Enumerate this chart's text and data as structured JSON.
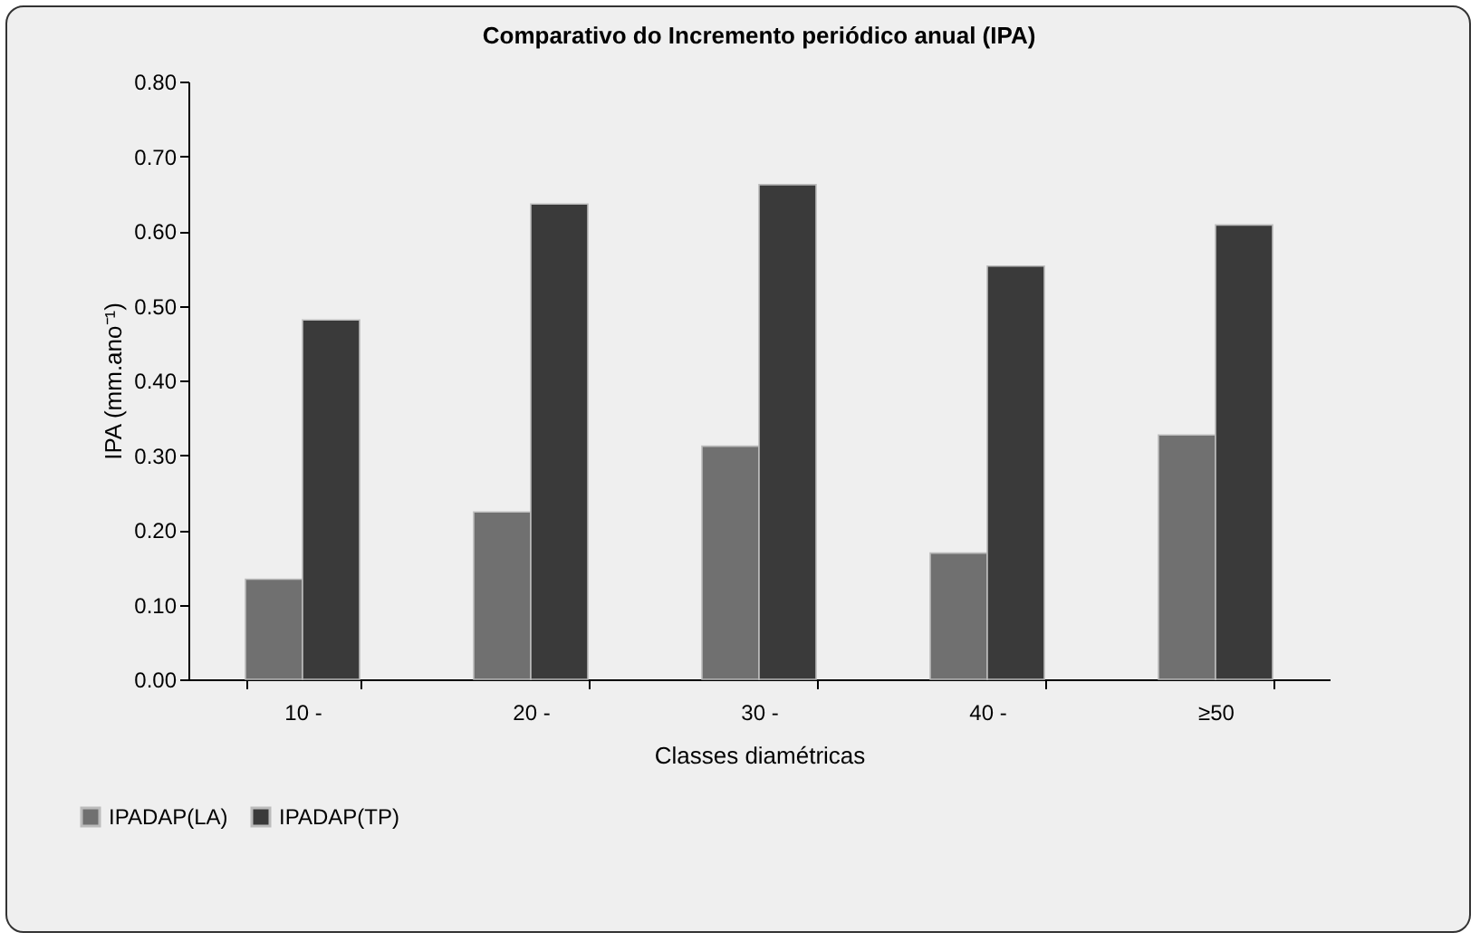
{
  "chart_data": {
    "type": "bar",
    "title": "Comparativo do Incremento periódico anual (IPA)",
    "xlabel": "Classes diamétricas",
    "ylabel": "IPA (mm.ano⁻¹)",
    "categories": [
      "10 -",
      "20 -",
      "30 -",
      "40 -",
      "≥50"
    ],
    "series": [
      {
        "name": "IPADAP(LA)",
        "color": "#707070",
        "values": [
          0.134,
          0.224,
          0.312,
          0.169,
          0.327
        ]
      },
      {
        "name": "IPADAP(TP)",
        "color": "#3a3a3a",
        "values": [
          0.481,
          0.636,
          0.662,
          0.553,
          0.608
        ]
      }
    ],
    "ylim": [
      0,
      0.8
    ],
    "yticks": [
      {
        "value": 0,
        "label": "0.00"
      },
      {
        "value": 0.1,
        "label": "0.10"
      },
      {
        "value": 0.2,
        "label": "0.20"
      },
      {
        "value": 0.3,
        "label": "0.30"
      },
      {
        "value": 0.4,
        "label": "0.40"
      },
      {
        "value": 0.5,
        "label": "0.50"
      },
      {
        "value": 0.6,
        "label": "0.60"
      },
      {
        "value": 0.7,
        "label": "0.70"
      },
      {
        "value": 0.8,
        "label": "0.80"
      }
    ],
    "legend": "bottom left"
  }
}
